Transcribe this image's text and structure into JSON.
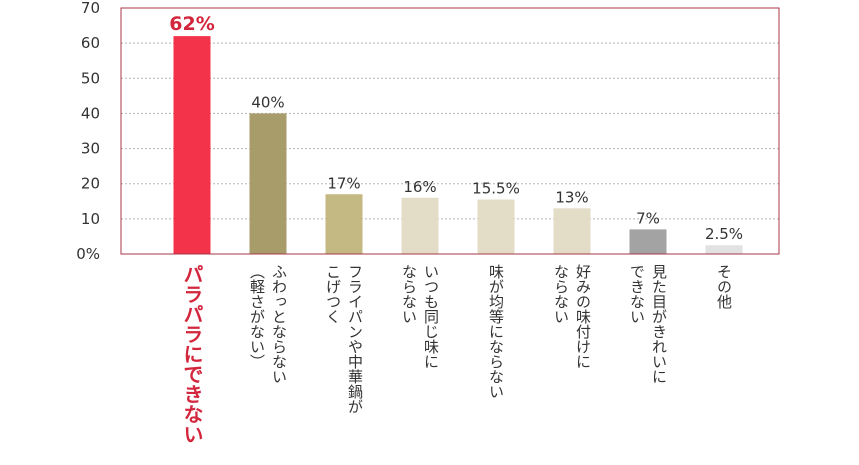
{
  "chart_data": {
    "type": "bar",
    "categories": [
      "パラパラにできない",
      "ふわっとならない\n（軽さがない）",
      "フライパンや中華鍋が\nこげつく",
      "いつも同じ味に\nならない",
      "味が均等にならない",
      "好みの味付けに\nならない",
      "見た目がきれいに\nできない",
      "その他"
    ],
    "values": [
      62,
      40,
      17,
      16,
      15.5,
      13,
      7,
      2.5
    ],
    "value_labels": [
      "62%",
      "40%",
      "17%",
      "16%",
      "15.5%",
      "13%",
      "7%",
      "2.5%"
    ],
    "bar_colors": [
      "#f23349",
      "#a89c6a",
      "#c4b883",
      "#e3dcc6",
      "#e3dcc6",
      "#e3dcc6",
      "#a3a3a3",
      "#e2e2e2"
    ],
    "highlight_index": 0,
    "highlight_color": "#d3263d",
    "frame_color": "#a8374a",
    "ytick_labels": [
      "0%",
      "10",
      "20",
      "30",
      "40",
      "50",
      "60",
      "70"
    ],
    "ylim": [
      0,
      70
    ],
    "grid": true,
    "title": "",
    "xlabel": "",
    "ylabel": ""
  }
}
